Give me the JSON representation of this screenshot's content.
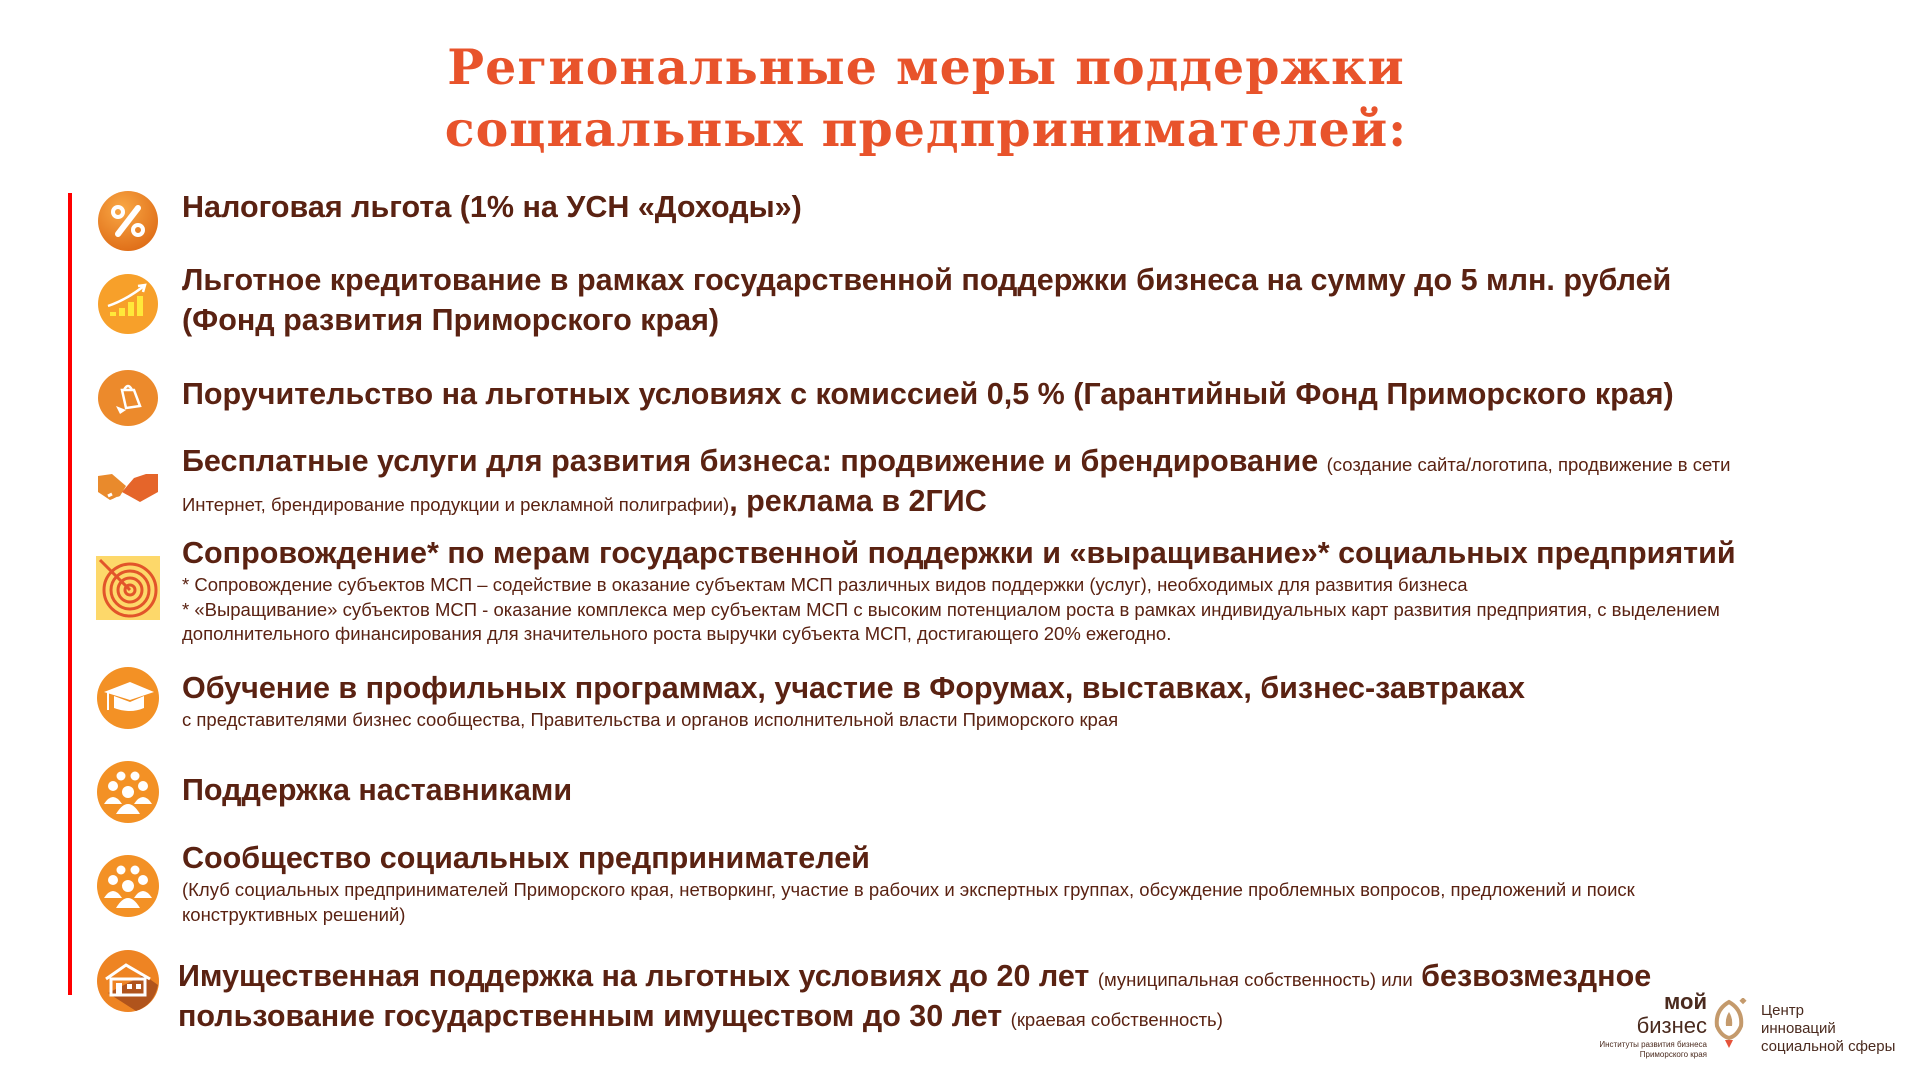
{
  "title": {
    "line1": "Региональные меры поддержки",
    "line2": "социальных предпринимателей:"
  },
  "colors": {
    "title": "#e8532b",
    "text": "#5a2212",
    "accent_line": "#ff0000",
    "icon_orange": "#f39125"
  },
  "items": [
    {
      "icon": "percent-icon",
      "bold": "Налоговая льгота (1% на УСН «Доходы»)"
    },
    {
      "icon": "growth-chart-icon",
      "bold": "Льготное кредитование в рамках государственной поддержки бизнеса на сумму до 5 млн. рублей",
      "bold2": "(Фонд развития Приморского края)"
    },
    {
      "icon": "money-bag-hand-icon",
      "bold": "Поручительство на льготных условиях с комиссией 0,5 % (Гарантийный Фонд Приморского края)"
    },
    {
      "icon": "handshake-icon",
      "bold": "Бесплатные услуги для развития бизнеса: продвижение и брендирование",
      "small": "(создание сайта/логотипа, продвижение в сети",
      "small2": "Интернет, брендирование продукции и рекламной полиграфии)",
      "bold2": ", реклама в 2ГИС"
    },
    {
      "icon": "target-icon",
      "bold": "Сопровождение* по мерам государственной поддержки и «выращивание»* социальных предприятий",
      "notes": [
        "* Сопровождение субъектов МСП – содействие в оказание субъектам МСП различных видов поддержки (услуг), необходимых для развития бизнеса",
        "* «Выращивание» субъектов МСП - оказание комплекса мер субъектам МСП с высоким потенциалом роста в рамках индивидуальных карт развития предприятия, с выделением",
        "дополнительного финансирования для значительного роста выручки субъекта МСП, достигающего 20% ежегодно."
      ]
    },
    {
      "icon": "graduation-cap-icon",
      "bold": "Обучение в профильных программах, участие в Форумах, выставках, бизнес-завтраках",
      "small": "с представителями бизнес сообщества, Правительства и органов исполнительной власти Приморского края"
    },
    {
      "icon": "people-group-icon",
      "bold": "Поддержка наставниками"
    },
    {
      "icon": "people-group-icon",
      "bold": "Сообщество социальных предпринимателей",
      "small": "(Клуб социальных предпринимателей Приморского края, нетворкинг, участие в рабочих и экспертных группах, обсуждение проблемных вопросов, предложений и поиск",
      "small2": "конструктивных решений)"
    },
    {
      "icon": "house-icon",
      "bold": "Имущественная поддержка на льготных условиях до 20 лет",
      "small": "(муниципальная собственность) или",
      "bold2": "безвозмездное",
      "bold3": "пользование государственным имуществом до 30 лет",
      "small2": "(краевая собственность)"
    }
  ],
  "logo": {
    "moy": "мой",
    "biznes": "бизнес",
    "institutes": "Институты развития бизнеса",
    "region": "Приморского края",
    "center": [
      "Центр",
      "инноваций",
      "социальной сферы"
    ]
  }
}
